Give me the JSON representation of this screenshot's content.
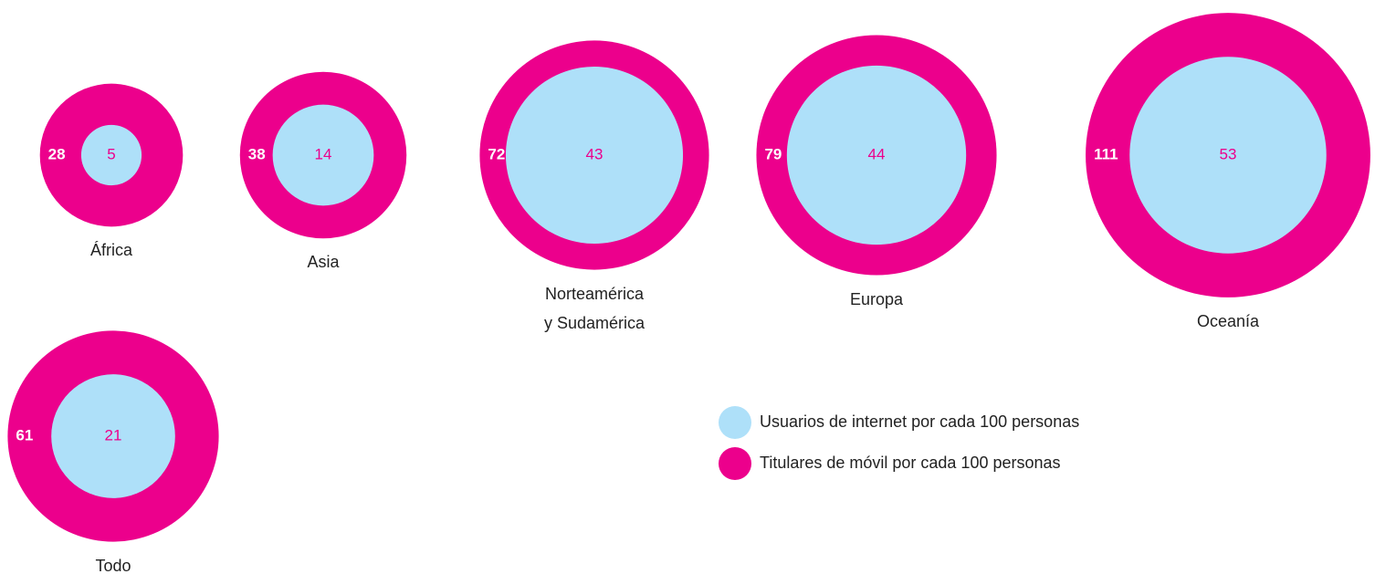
{
  "chart_data": {
    "type": "nested-circles",
    "categories": [
      "África",
      "Asia",
      "Norteamérica\ny Sudamérica",
      "Europa",
      "Oceanía",
      "Todo"
    ],
    "series": [
      {
        "name": "Usuarios de internet por cada 100 personas",
        "color": "#aee0f9",
        "values": [
          5,
          14,
          43,
          44,
          53,
          21
        ]
      },
      {
        "name": "Titulares de móvil por cada 100 personas",
        "color": "#ec008c",
        "values": [
          28,
          38,
          72,
          79,
          111,
          61
        ]
      }
    ]
  }
}
